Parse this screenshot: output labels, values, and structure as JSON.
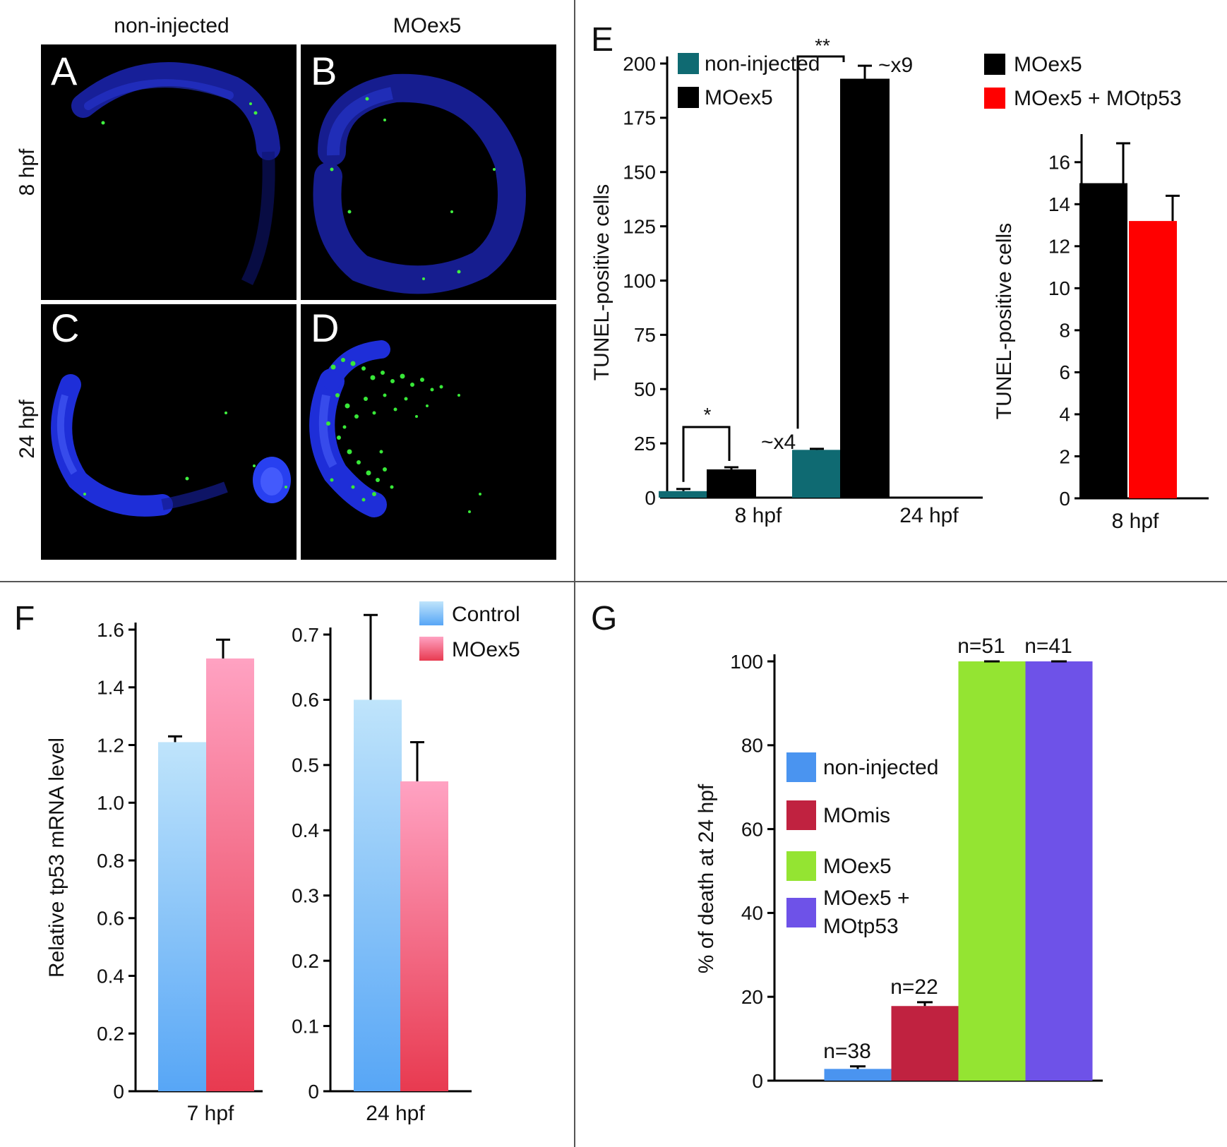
{
  "micrographs": {
    "column_labels": [
      "non-injected",
      "MOex5"
    ],
    "row_labels": [
      "8 hpf",
      "24 hpf"
    ],
    "panel_letters": [
      "A",
      "B",
      "C",
      "D"
    ],
    "colors": {
      "nuclei": "#2030d8",
      "tunel": "#38e838",
      "background": "#000000"
    }
  },
  "chart_data": [
    {
      "panel": "E",
      "type": "bar",
      "ylabel": "TUNEL-positive cells",
      "categories": [
        "8 hpf",
        "24 hpf"
      ],
      "ylim": [
        0,
        200
      ],
      "yticks": [
        0,
        25,
        50,
        75,
        100,
        125,
        150,
        175,
        200
      ],
      "series": [
        {
          "name": "non-injected",
          "color": "#0f6a72",
          "values": [
            3,
            22
          ],
          "errors": [
            1,
            0.5
          ]
        },
        {
          "name": "MOex5",
          "color": "#000000",
          "values": [
            13,
            193
          ],
          "errors": [
            1,
            6
          ]
        }
      ],
      "annotations": [
        {
          "category": "8 hpf",
          "stars": "*",
          "fold": "~x4"
        },
        {
          "category": "24 hpf",
          "stars": "**",
          "fold": "~x9"
        }
      ],
      "legend_position": "top-left"
    },
    {
      "panel": "E",
      "type": "bar",
      "ylabel": "TUNEL-positive cells",
      "categories": [
        "8 hpf"
      ],
      "ylim": [
        0,
        17
      ],
      "yticks": [
        0,
        2,
        4,
        6,
        8,
        10,
        12,
        14,
        16
      ],
      "series": [
        {
          "name": "MOex5",
          "color": "#000000",
          "values": [
            15
          ],
          "errors": [
            1.9
          ]
        },
        {
          "name": "MOex5 + MOtp53",
          "color": "#ff0000",
          "values": [
            13.2
          ],
          "errors": [
            1.2
          ]
        }
      ],
      "legend_position": "top"
    },
    {
      "panel": "F",
      "type": "bar",
      "ylabel": "Relative tp53 mRNA level",
      "categories": [
        "7 hpf"
      ],
      "ylim": [
        0,
        1.6
      ],
      "yticks": [
        0,
        0.2,
        0.4,
        0.6,
        0.8,
        1.0,
        1.2,
        1.4,
        1.6
      ],
      "ytick_labels": [
        "0",
        "0.2",
        "0.4",
        "0.6",
        "0.8",
        "1.0",
        "1.2",
        "1.4",
        "1.6"
      ],
      "series": [
        {
          "name": "Control",
          "color": "#5aacf8",
          "values": [
            1.21
          ],
          "errors": [
            0.02
          ]
        },
        {
          "name": "MOex5",
          "color": "#f0506a",
          "values": [
            1.5
          ],
          "errors": [
            0.065
          ]
        }
      ]
    },
    {
      "panel": "F",
      "type": "bar",
      "categories": [
        "24 hpf"
      ],
      "ylim": [
        0,
        0.7
      ],
      "yticks": [
        0,
        0.1,
        0.2,
        0.3,
        0.4,
        0.5,
        0.6,
        0.7
      ],
      "ytick_labels": [
        "0",
        "0.1",
        "0.2",
        "0.3",
        "0.4",
        "0.5",
        "0.6",
        "0.7"
      ],
      "series": [
        {
          "name": "Control",
          "color": "#5aacf8",
          "values": [
            0.6
          ],
          "errors": [
            0.13
          ]
        },
        {
          "name": "MOex5",
          "color": "#f0506a",
          "values": [
            0.475
          ],
          "errors": [
            0.06
          ]
        }
      ],
      "legend_position": "top-right"
    },
    {
      "panel": "G",
      "type": "bar",
      "ylabel": "% of death at 24 hpf",
      "ylim": [
        0,
        100
      ],
      "yticks": [
        0,
        20,
        40,
        60,
        80,
        100
      ],
      "series": [
        {
          "name": "non-injected",
          "color": "#4a94f0",
          "values": [
            2.8
          ],
          "errors": [
            0.6
          ],
          "n_label": "n=38"
        },
        {
          "name": "MOmis",
          "color": "#c02240",
          "values": [
            17.8
          ],
          "errors": [
            0.9
          ],
          "n_label": "n=22"
        },
        {
          "name": "MOex5",
          "color": "#94e432",
          "values": [
            100
          ],
          "errors": [
            0
          ],
          "n_label": "n=51"
        },
        {
          "name": "MOex5 + MOtp53",
          "color": "#6e52e8",
          "values": [
            100
          ],
          "errors": [
            0
          ],
          "n_label": "n=41"
        }
      ],
      "legend_position": "left"
    }
  ]
}
